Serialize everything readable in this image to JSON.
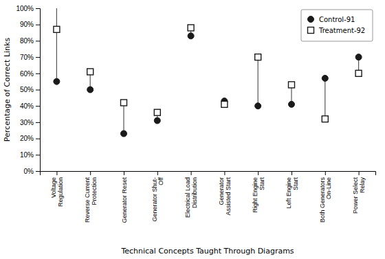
{
  "chart_data": {
    "type": "dot",
    "categories": [
      "Voltage\nRegulation",
      "Reverse Current\nProtection",
      "Generator Reset",
      "Generator Shut-\nOff",
      "Electrical Load\nDistribution",
      "Generator\nAssisted Start",
      "Right Engine\nStart",
      "Left Engine\nStart",
      "Both Generators\nOn-Line",
      "Power Select\nRelay"
    ],
    "series": [
      {
        "name": "Control-91",
        "color": "#1a1a1a",
        "marker": "circle",
        "values": [
          55,
          50,
          23,
          31,
          83,
          43,
          40,
          41,
          57,
          70
        ]
      },
      {
        "name": "Treatment-92",
        "color": "#1a1a1a",
        "marker": "square",
        "values": [
          87,
          61,
          42,
          36,
          88,
          41,
          70,
          53,
          32,
          60
        ]
      }
    ],
    "line_top": [
      100,
      null,
      null,
      null,
      null,
      null,
      null,
      null,
      null,
      null
    ],
    "color": "#555555",
    "x_label": "Technical Concepts Taught Through Diagrams",
    "y_label": "Percentage of Correct Links",
    "ylim": [
      0,
      100
    ],
    "yticks": [
      {
        "value": 0,
        "label": "0%"
      },
      {
        "value": 10,
        "label": "10%"
      },
      {
        "value": 20,
        "label": "20%"
      },
      {
        "value": 30,
        "label": "30%"
      },
      {
        "value": 40,
        "label": "40%"
      },
      {
        "value": 50,
        "label": "50%"
      },
      {
        "value": 60,
        "label": "60%"
      },
      {
        "value": 70,
        "label": "70%"
      },
      {
        "value": 80,
        "label": "80%"
      },
      {
        "value": 90,
        "label": "90%"
      },
      {
        "value": 100,
        "label": "100%"
      }
    ],
    "grid": false,
    "legend": "upper right"
  }
}
